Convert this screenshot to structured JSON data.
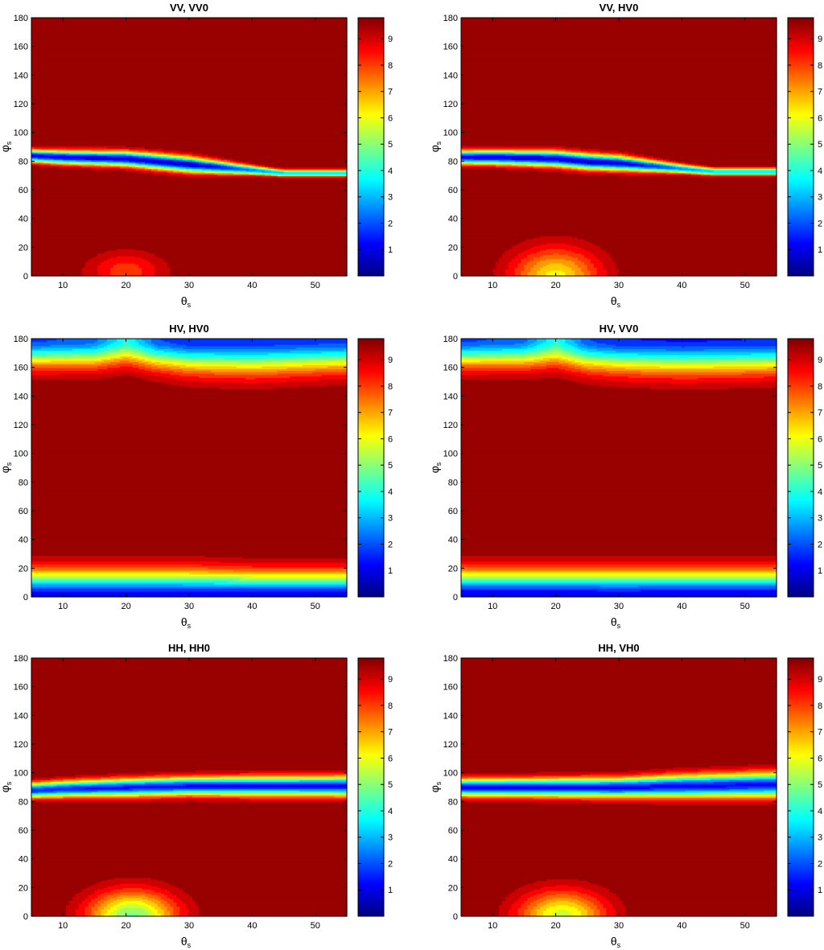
{
  "chart_data": [
    {
      "type": "heatmap",
      "title": "VV, VV0",
      "xlabel": "θ",
      "xlabel_sub": "s",
      "ylabel": "φ",
      "ylabel_sub": "s",
      "xlim": [
        5,
        55
      ],
      "ylim": [
        0,
        180
      ],
      "xticks": [
        10,
        20,
        30,
        40,
        50
      ],
      "yticks": [
        0,
        20,
        40,
        60,
        80,
        100,
        120,
        140,
        160,
        180
      ],
      "colorbar": {
        "min": 0,
        "max": 9.8,
        "ticks": [
          1,
          2,
          3,
          4,
          5,
          6,
          7,
          8,
          9
        ]
      },
      "background_value": 9.8,
      "bands": [
        {
          "xs": [
            5,
            10,
            20,
            25,
            30,
            35,
            40,
            45,
            55
          ],
          "center": [
            84,
            83,
            82,
            80,
            78,
            76,
            74,
            72,
            72
          ],
          "min": [
            1.2,
            1.0,
            0.9,
            0.8,
            0.8,
            1.4,
            2.6,
            3.2,
            3.2
          ],
          "width": [
            4.2,
            4.5,
            5.0,
            5.2,
            5.2,
            4.2,
            3.0,
            2.2,
            2.2
          ]
        }
      ],
      "spots": [
        {
          "x": 20,
          "y": 3,
          "sx": 6,
          "sy": 14,
          "depth": 1.8
        }
      ]
    },
    {
      "type": "heatmap",
      "title": "VV, HV0",
      "xlabel": "θ",
      "xlabel_sub": "s",
      "ylabel": "φ",
      "ylabel_sub": "s",
      "xlim": [
        5,
        55
      ],
      "ylim": [
        0,
        180
      ],
      "xticks": [
        10,
        20,
        30,
        40,
        50
      ],
      "yticks": [
        0,
        20,
        40,
        60,
        80,
        100,
        120,
        140,
        160,
        180
      ],
      "colorbar": {
        "min": 0,
        "max": 9.8,
        "ticks": [
          1,
          2,
          3,
          4,
          5,
          6,
          7,
          8,
          9
        ]
      },
      "background_value": 9.8,
      "bands": [
        {
          "xs": [
            5,
            10,
            20,
            25,
            30,
            35,
            40,
            45,
            55
          ],
          "center": [
            83,
            83,
            82,
            80,
            79,
            77,
            75,
            73,
            73
          ],
          "min": [
            1.2,
            1.0,
            0.9,
            0.8,
            0.9,
            1.6,
            2.7,
            3.2,
            3.2
          ],
          "width": [
            4.6,
            4.8,
            5.3,
            5.3,
            5.0,
            4.0,
            3.0,
            2.4,
            2.4
          ]
        }
      ],
      "spots": [
        {
          "x": 20,
          "y": 0,
          "sx": 7,
          "sy": 20,
          "depth": 3.6
        }
      ]
    },
    {
      "type": "heatmap",
      "title": "HV, HV0",
      "xlabel": "θ",
      "xlabel_sub": "s",
      "ylabel": "φ",
      "ylabel_sub": "s",
      "xlim": [
        5,
        55
      ],
      "ylim": [
        0,
        180
      ],
      "xticks": [
        10,
        20,
        30,
        40,
        50
      ],
      "yticks": [
        0,
        20,
        40,
        60,
        80,
        100,
        120,
        140,
        160,
        180
      ],
      "colorbar": {
        "min": 0,
        "max": 9.8,
        "ticks": [
          1,
          2,
          3,
          4,
          5,
          6,
          7,
          8,
          9
        ]
      },
      "background_value": 9.8,
      "bands": [
        {
          "xs": [
            5,
            15,
            20,
            25,
            30,
            40,
            55
          ],
          "center": [
            180,
            180,
            180,
            180,
            180,
            180,
            180
          ],
          "min": [
            1.8,
            2.2,
            4.0,
            2.0,
            1.5,
            1.5,
            1.8
          ],
          "width": [
            17,
            17,
            16,
            18,
            20,
            21,
            19
          ]
        },
        {
          "xs": [
            5,
            20,
            30,
            40,
            55
          ],
          "center": [
            0,
            0,
            0,
            0,
            0
          ],
          "min": [
            0.9,
            0.9,
            1.0,
            0.9,
            0.9
          ],
          "width": [
            17,
            17,
            17,
            16,
            16
          ]
        }
      ],
      "spots": []
    },
    {
      "type": "heatmap",
      "title": "HV, VV0",
      "xlabel": "θ",
      "xlabel_sub": "s",
      "ylabel": "φ",
      "ylabel_sub": "s",
      "xlim": [
        5,
        55
      ],
      "ylim": [
        0,
        180
      ],
      "xticks": [
        10,
        20,
        30,
        40,
        50
      ],
      "yticks": [
        0,
        20,
        40,
        60,
        80,
        100,
        120,
        140,
        160,
        180
      ],
      "colorbar": {
        "min": 0,
        "max": 9.8,
        "ticks": [
          1,
          2,
          3,
          4,
          5,
          6,
          7,
          8,
          9
        ]
      },
      "background_value": 9.8,
      "bands": [
        {
          "xs": [
            5,
            15,
            20,
            25,
            30,
            40,
            55
          ],
          "center": [
            180,
            180,
            180,
            180,
            180,
            180,
            180
          ],
          "min": [
            1.8,
            2.2,
            4.0,
            2.0,
            1.5,
            1.4,
            1.5
          ],
          "width": [
            17,
            17,
            17,
            19,
            20,
            21,
            20
          ]
        },
        {
          "xs": [
            5,
            20,
            30,
            40,
            55
          ],
          "center": [
            0,
            0,
            0,
            0,
            0
          ],
          "min": [
            0.8,
            0.8,
            0.9,
            0.8,
            0.8
          ],
          "width": [
            17,
            17,
            17,
            17,
            17
          ]
        }
      ],
      "spots": []
    },
    {
      "type": "heatmap",
      "title": "HH, HH0",
      "xlabel": "θ",
      "xlabel_sub": "s",
      "ylabel": "φ",
      "ylabel_sub": "s",
      "xlim": [
        5,
        55
      ],
      "ylim": [
        0,
        180
      ],
      "xticks": [
        10,
        20,
        30,
        40,
        50
      ],
      "yticks": [
        0,
        20,
        40,
        60,
        80,
        100,
        120,
        140,
        160,
        180
      ],
      "colorbar": {
        "min": 0,
        "max": 9.8,
        "ticks": [
          1,
          2,
          3,
          4,
          5,
          6,
          7,
          8,
          9
        ]
      },
      "background_value": 9.8,
      "bands": [
        {
          "xs": [
            5,
            10,
            20,
            30,
            40,
            55
          ],
          "center": [
            88,
            89,
            90,
            91,
            91,
            91
          ],
          "min": [
            1.6,
            1.5,
            1.4,
            1.4,
            1.4,
            1.4
          ],
          "width": [
            5.0,
            5.4,
            6.0,
            6.2,
            6.5,
            6.8
          ]
        }
      ],
      "spots": [
        {
          "x": 21,
          "y": 0,
          "sx": 7,
          "sy": 18,
          "depth": 5.0
        }
      ]
    },
    {
      "type": "heatmap",
      "title": "HH, VH0",
      "xlabel": "θ",
      "xlabel_sub": "s",
      "ylabel": "φ",
      "ylabel_sub": "s",
      "xlim": [
        5,
        55
      ],
      "ylim": [
        0,
        180
      ],
      "xticks": [
        10,
        20,
        30,
        40,
        50
      ],
      "yticks": [
        0,
        20,
        40,
        60,
        80,
        100,
        120,
        140,
        160,
        180
      ],
      "colorbar": {
        "min": 0,
        "max": 9.8,
        "ticks": [
          1,
          2,
          3,
          4,
          5,
          6,
          7,
          8,
          9
        ]
      },
      "background_value": 9.8,
      "bands": [
        {
          "xs": [
            5,
            10,
            20,
            30,
            40,
            55
          ],
          "center": [
            90,
            90,
            90,
            90,
            91,
            92
          ],
          "min": [
            1.4,
            1.3,
            1.3,
            1.3,
            1.3,
            1.4
          ],
          "width": [
            5.8,
            6.0,
            6.3,
            6.6,
            7.6,
            8.4
          ]
        }
      ],
      "spots": [
        {
          "x": 21,
          "y": 0,
          "sx": 7,
          "sy": 18,
          "depth": 4.2
        }
      ]
    }
  ]
}
